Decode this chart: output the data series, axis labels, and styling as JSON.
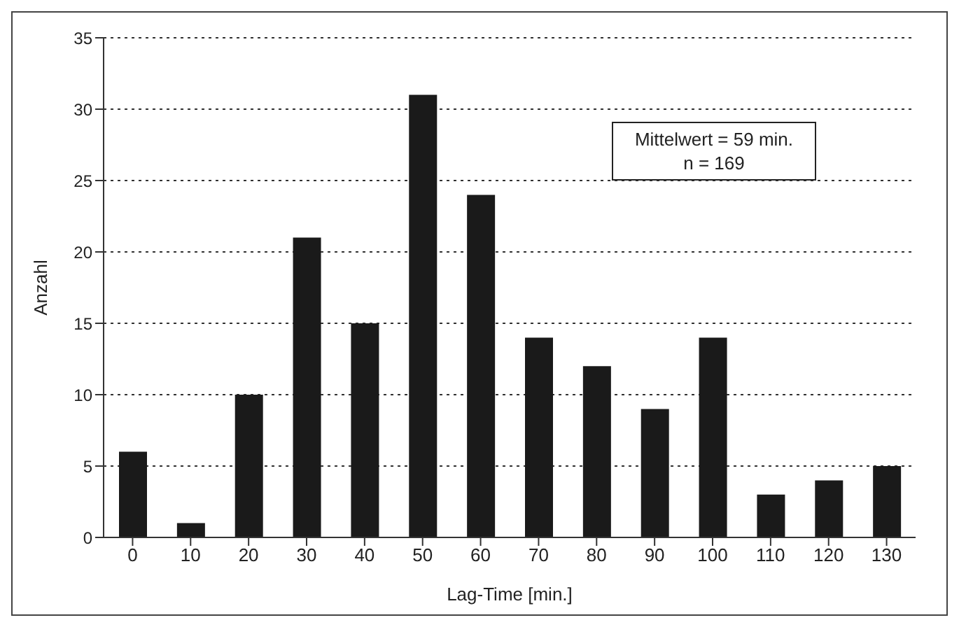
{
  "chart_data": {
    "type": "bar",
    "xlabel": "Lag-Time [min.]",
    "ylabel": "Anzahl",
    "categories": [
      "0",
      "10",
      "20",
      "30",
      "40",
      "50",
      "60",
      "70",
      "80",
      "90",
      "100",
      "110",
      "120",
      "130"
    ],
    "values": [
      6,
      1,
      10,
      21,
      15,
      31,
      24,
      14,
      12,
      9,
      14,
      3,
      4,
      5
    ],
    "color": "#1a1a1a",
    "ylim": [
      0,
      35
    ],
    "yticks": [
      0,
      5,
      10,
      15,
      20,
      25,
      30,
      35
    ],
    "grid": "y",
    "annotations": [
      "Mittelwert = 59 min.",
      "n = 169"
    ]
  }
}
